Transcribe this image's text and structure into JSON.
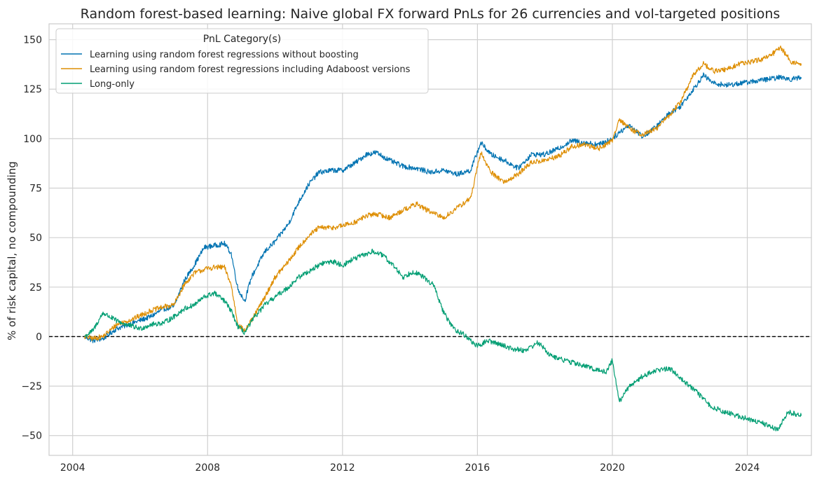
{
  "chart_data": {
    "type": "line",
    "title": "Random forest-based learning: Naive global FX forward PnLs for 26 currencies and vol-targeted positions",
    "ylabel": "% of risk capital, no compounding",
    "xlabel": "",
    "xlim": [
      2003.3,
      2025.9
    ],
    "ylim": [
      -60,
      158
    ],
    "x_ticks": [
      2004,
      2008,
      2012,
      2016,
      2020,
      2024
    ],
    "y_ticks": [
      -50,
      -25,
      0,
      25,
      50,
      75,
      100,
      125,
      150
    ],
    "y_tick_labels": [
      "−50",
      "−25",
      "0",
      "25",
      "50",
      "75",
      "100",
      "125",
      "150"
    ],
    "grid": true,
    "zero_line": {
      "y": 0,
      "style": "dashed",
      "color": "#000000"
    },
    "legend": {
      "title": "PnL Category(s)",
      "placement": "top-left"
    },
    "series": [
      {
        "name": "Learning using random forest regressions without boosting",
        "color": "#0173b2",
        "x": [
          2004.35,
          2004.6,
          2004.9,
          2005.3,
          2005.8,
          2006.3,
          2006.7,
          2007.0,
          2007.3,
          2007.6,
          2007.9,
          2008.2,
          2008.5,
          2008.7,
          2008.9,
          2009.1,
          2009.3,
          2009.7,
          2010.0,
          2010.4,
          2010.7,
          2011.0,
          2011.3,
          2011.7,
          2012.0,
          2012.4,
          2012.7,
          2013.0,
          2013.4,
          2013.8,
          2014.2,
          2014.6,
          2015.0,
          2015.4,
          2015.8,
          2016.1,
          2016.4,
          2016.8,
          2017.2,
          2017.6,
          2018.0,
          2018.4,
          2018.8,
          2019.2,
          2019.6,
          2020.0,
          2020.2,
          2020.5,
          2020.9,
          2021.3,
          2021.7,
          2022.0,
          2022.4,
          2022.7,
          2023.0,
          2023.4,
          2023.8,
          2024.2,
          2024.6,
          2025.0,
          2025.3,
          2025.6
        ],
        "values": [
          0,
          -2,
          -1,
          4,
          7,
          10,
          14,
          15,
          28,
          36,
          45,
          46,
          47,
          42,
          24,
          18,
          30,
          43,
          48,
          57,
          68,
          77,
          83,
          84,
          84,
          88,
          92,
          93,
          89,
          86,
          85,
          83,
          84,
          82,
          84,
          98,
          92,
          89,
          85,
          92,
          92,
          95,
          99,
          98,
          97,
          100,
          103,
          107,
          101,
          106,
          113,
          116,
          125,
          132,
          128,
          127,
          128,
          129,
          130,
          131,
          130,
          131
        ]
      },
      {
        "name": "Learning using random forest regressions including Adaboost versions",
        "color": "#de8f05",
        "x": [
          2004.35,
          2004.6,
          2004.9,
          2005.3,
          2005.8,
          2006.3,
          2006.7,
          2007.0,
          2007.3,
          2007.6,
          2007.9,
          2008.2,
          2008.5,
          2008.7,
          2008.9,
          2009.1,
          2009.3,
          2009.7,
          2010.0,
          2010.4,
          2010.7,
          2011.0,
          2011.3,
          2011.7,
          2012.0,
          2012.4,
          2012.7,
          2013.0,
          2013.4,
          2013.8,
          2014.2,
          2014.6,
          2015.0,
          2015.4,
          2015.8,
          2016.1,
          2016.4,
          2016.8,
          2017.2,
          2017.6,
          2018.0,
          2018.4,
          2018.8,
          2019.2,
          2019.6,
          2020.0,
          2020.2,
          2020.5,
          2020.9,
          2021.3,
          2021.7,
          2022.0,
          2022.4,
          2022.7,
          2023.0,
          2023.4,
          2023.8,
          2024.2,
          2024.6,
          2025.0,
          2025.3,
          2025.6
        ],
        "values": [
          0,
          -1,
          0,
          6,
          9,
          13,
          15,
          16,
          26,
          32,
          34,
          35,
          35,
          26,
          6,
          3,
          8,
          20,
          30,
          38,
          45,
          51,
          55,
          55,
          56,
          58,
          61,
          62,
          60,
          64,
          67,
          63,
          60,
          65,
          70,
          93,
          83,
          78,
          82,
          88,
          89,
          91,
          96,
          97,
          95,
          99,
          110,
          105,
          102,
          105,
          112,
          118,
          132,
          138,
          134,
          135,
          138,
          139,
          141,
          146,
          139,
          137
        ]
      },
      {
        "name": "Long-only",
        "color": "#029e73",
        "x": [
          2004.35,
          2004.6,
          2004.9,
          2005.3,
          2005.6,
          2006.0,
          2006.3,
          2006.7,
          2007.0,
          2007.3,
          2007.6,
          2007.9,
          2008.2,
          2008.5,
          2008.7,
          2008.9,
          2009.1,
          2009.4,
          2009.7,
          2010.0,
          2010.4,
          2010.7,
          2011.0,
          2011.4,
          2011.7,
          2012.0,
          2012.3,
          2012.6,
          2012.9,
          2013.2,
          2013.5,
          2013.8,
          2014.1,
          2014.4,
          2014.7,
          2015.0,
          2015.3,
          2015.6,
          2016.0,
          2016.3,
          2016.7,
          2017.0,
          2017.4,
          2017.8,
          2018.2,
          2018.6,
          2019.0,
          2019.4,
          2019.8,
          2020.0,
          2020.1,
          2020.2,
          2020.5,
          2020.9,
          2021.3,
          2021.7,
          2022.1,
          2022.5,
          2022.9,
          2023.3,
          2023.7,
          2024.1,
          2024.5,
          2024.9,
          2025.2,
          2025.6
        ],
        "values": [
          0,
          3,
          12,
          8,
          6,
          4,
          6,
          7,
          10,
          14,
          16,
          20,
          22,
          18,
          13,
          5,
          2,
          10,
          16,
          20,
          25,
          30,
          33,
          37,
          38,
          36,
          39,
          41,
          43,
          41,
          36,
          30,
          33,
          30,
          26,
          12,
          4,
          1,
          -5,
          -2,
          -4,
          -6,
          -7,
          -3,
          -10,
          -12,
          -14,
          -16,
          -18,
          -12,
          -22,
          -33,
          -25,
          -20,
          -17,
          -16,
          -22,
          -28,
          -35,
          -38,
          -40,
          -42,
          -44,
          -47,
          -38,
          -40
        ]
      }
    ]
  }
}
